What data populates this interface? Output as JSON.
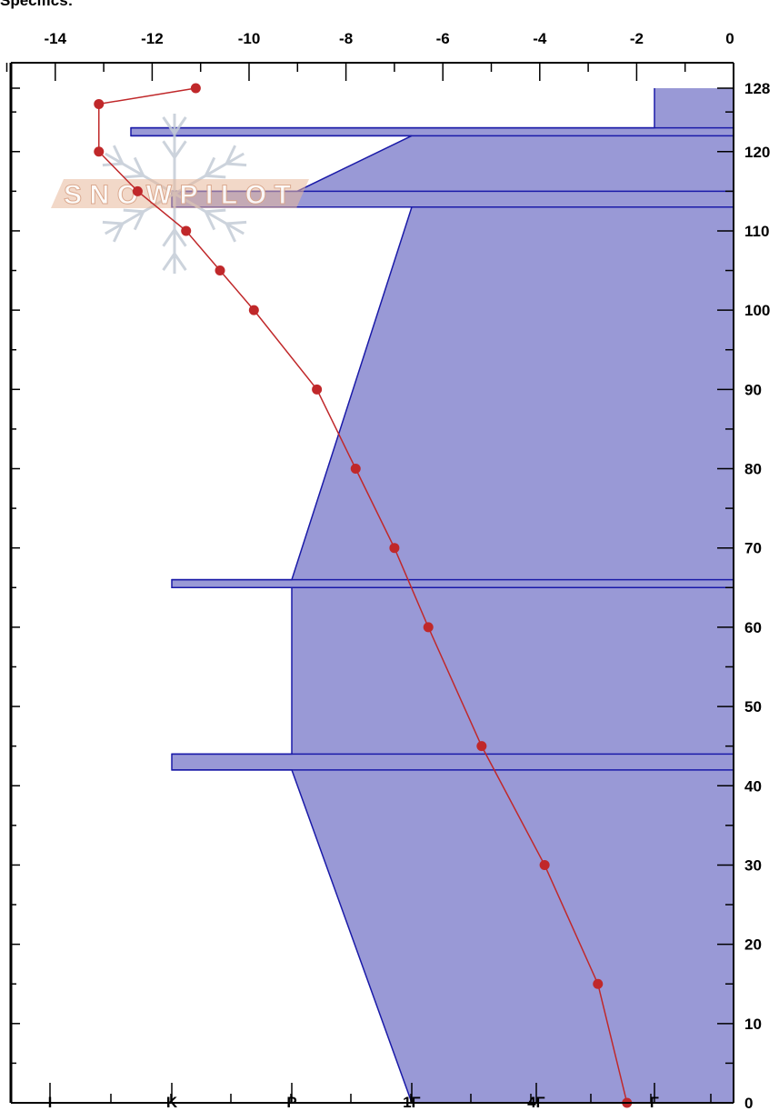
{
  "header": {
    "label": "Specifics:"
  },
  "watermark": {
    "text": "SNOWPILOT",
    "color": "#e8b89a",
    "icon": "snowflake-icon"
  },
  "colors": {
    "hardness_fill": "#9999d6",
    "hardness_stroke": "#1a1aa8",
    "temp_line": "#c0282a"
  },
  "chart_data": [
    {
      "type": "line",
      "name": "temperature-profile",
      "x_ticks": [
        -14,
        -12,
        -10,
        -8,
        -6,
        -4,
        -2,
        0
      ],
      "xlim": [
        -15,
        0
      ],
      "y_ticks": [
        0,
        10,
        20,
        30,
        40,
        50,
        60,
        70,
        80,
        90,
        100,
        110,
        120,
        128
      ],
      "ylim": [
        0,
        128
      ],
      "points": [
        {
          "x": -11.1,
          "y": 128
        },
        {
          "x": -13.1,
          "y": 126
        },
        {
          "x": -13.1,
          "y": 120
        },
        {
          "x": -12.3,
          "y": 115
        },
        {
          "x": -11.3,
          "y": 110
        },
        {
          "x": -10.6,
          "y": 105
        },
        {
          "x": -9.9,
          "y": 100
        },
        {
          "x": -8.6,
          "y": 90
        },
        {
          "x": -7.8,
          "y": 80
        },
        {
          "x": -7.0,
          "y": 70
        },
        {
          "x": -6.3,
          "y": 60
        },
        {
          "x": -5.2,
          "y": 45
        },
        {
          "x": -3.9,
          "y": 30
        },
        {
          "x": -2.8,
          "y": 15
        },
        {
          "x": -2.2,
          "y": 0
        }
      ]
    },
    {
      "type": "area",
      "name": "hand-hardness-profile",
      "x_ticks": [
        "I",
        "K",
        "P",
        "1F",
        "4F",
        "F"
      ],
      "y_ticks": [
        0,
        10,
        20,
        30,
        40,
        50,
        60,
        70,
        80,
        90,
        100,
        110,
        120,
        128
      ],
      "ylim": [
        0,
        128
      ],
      "profile": [
        {
          "y": 0,
          "hardness": "1F"
        },
        {
          "y": 42,
          "hardness": "P"
        },
        {
          "y": 42,
          "hardness": "K"
        },
        {
          "y": 44,
          "hardness": "K"
        },
        {
          "y": 44,
          "hardness": "P"
        },
        {
          "y": 65,
          "hardness": "P"
        },
        {
          "y": 65,
          "hardness": "K"
        },
        {
          "y": 66,
          "hardness": "K"
        },
        {
          "y": 66,
          "hardness": "P"
        },
        {
          "y": 113,
          "hardness": "1F"
        },
        {
          "y": 113,
          "hardness": "K"
        },
        {
          "y": 115,
          "hardness": "K"
        },
        {
          "y": 115,
          "hardness": "P-"
        },
        {
          "y": 122,
          "hardness": "1F"
        },
        {
          "y": 122,
          "hardness": "K-"
        },
        {
          "y": 123,
          "hardness": "K-"
        },
        {
          "y": 123,
          "hardness": "F+"
        },
        {
          "y": 128,
          "hardness": "F+"
        }
      ]
    }
  ]
}
